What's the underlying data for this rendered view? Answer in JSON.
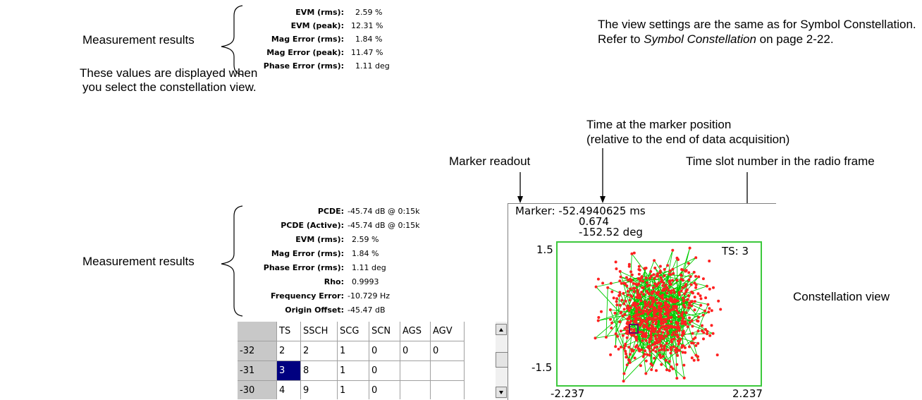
{
  "top_annotations": {
    "measurement_results": "Measurement results",
    "note_line1": "These values are displayed when",
    "note_line2": "you select the constellation view.",
    "view_settings_line1": "The view settings are the same as for Symbol Constellation.",
    "view_settings_line2_prefix": "Refer to ",
    "view_settings_line2_italic": "Symbol Constellation",
    "view_settings_line2_suffix": " on page 2-22."
  },
  "top_measurements": [
    {
      "label": "EVM (rms):",
      "value": "2.59 %"
    },
    {
      "label": "EVM (peak):",
      "value": "12.31 %"
    },
    {
      "label": "Mag Error (rms):",
      "value": "1.84 %"
    },
    {
      "label": "Mag Error (peak):",
      "value": "11.47 %"
    },
    {
      "label": "Phase Error (rms):",
      "value": "1.11 deg"
    }
  ],
  "callouts": {
    "time_at_marker_line1": "Time at the marker position",
    "time_at_marker_line2": "(relative to the end of data acquisition)",
    "marker_readout": "Marker readout",
    "time_slot": "Time slot number in the radio frame",
    "measurement_results": "Measurement results",
    "constellation_view": "Constellation view"
  },
  "bottom_measurements": [
    {
      "label": "PCDE:",
      "value": "-45.74 dB @ 0:15k"
    },
    {
      "label": "PCDE (Active):",
      "value": "-45.74 dB @ 0:15k"
    },
    {
      "label": "EVM (rms):",
      "value": "2.59 %"
    },
    {
      "label": "Mag Error (rms):",
      "value": "1.84 %"
    },
    {
      "label": "Phase Error (rms):",
      "value": "1.11 deg"
    },
    {
      "label": "Rho:",
      "value": "0.9993"
    },
    {
      "label": "Frequency Error:",
      "value": "-10.729 Hz"
    },
    {
      "label": "Origin Offset:",
      "value": "-45.47 dB"
    }
  ],
  "table": {
    "columns": [
      "TS",
      "SSCH",
      "SCG",
      "SCN",
      "AGS",
      "AGV"
    ],
    "rows": [
      {
        "header": "-32",
        "cells": [
          "2",
          "2",
          "1",
          "0",
          "0",
          "0"
        ]
      },
      {
        "header": "-31",
        "cells": [
          "3",
          "8",
          "1",
          "0",
          "",
          ""
        ]
      },
      {
        "header": "-30",
        "cells": [
          "4",
          "9",
          "1",
          "0",
          "",
          ""
        ]
      }
    ],
    "selected": {
      "row": 1,
      "col": 0
    }
  },
  "constellation": {
    "marker_line1": "Marker: -52.4940625 ms",
    "marker_line2": "0.674",
    "marker_line3": "-152.52 deg",
    "y_max": "1.5",
    "y_min": "-1.5",
    "x_min": "-2.237",
    "x_max": "2.237",
    "ts_label": "TS: 3",
    "colors": {
      "frame": "#3cc83c",
      "trace": "#00cc00",
      "points": "#ff2020",
      "marker": "#6a0a6a"
    }
  }
}
